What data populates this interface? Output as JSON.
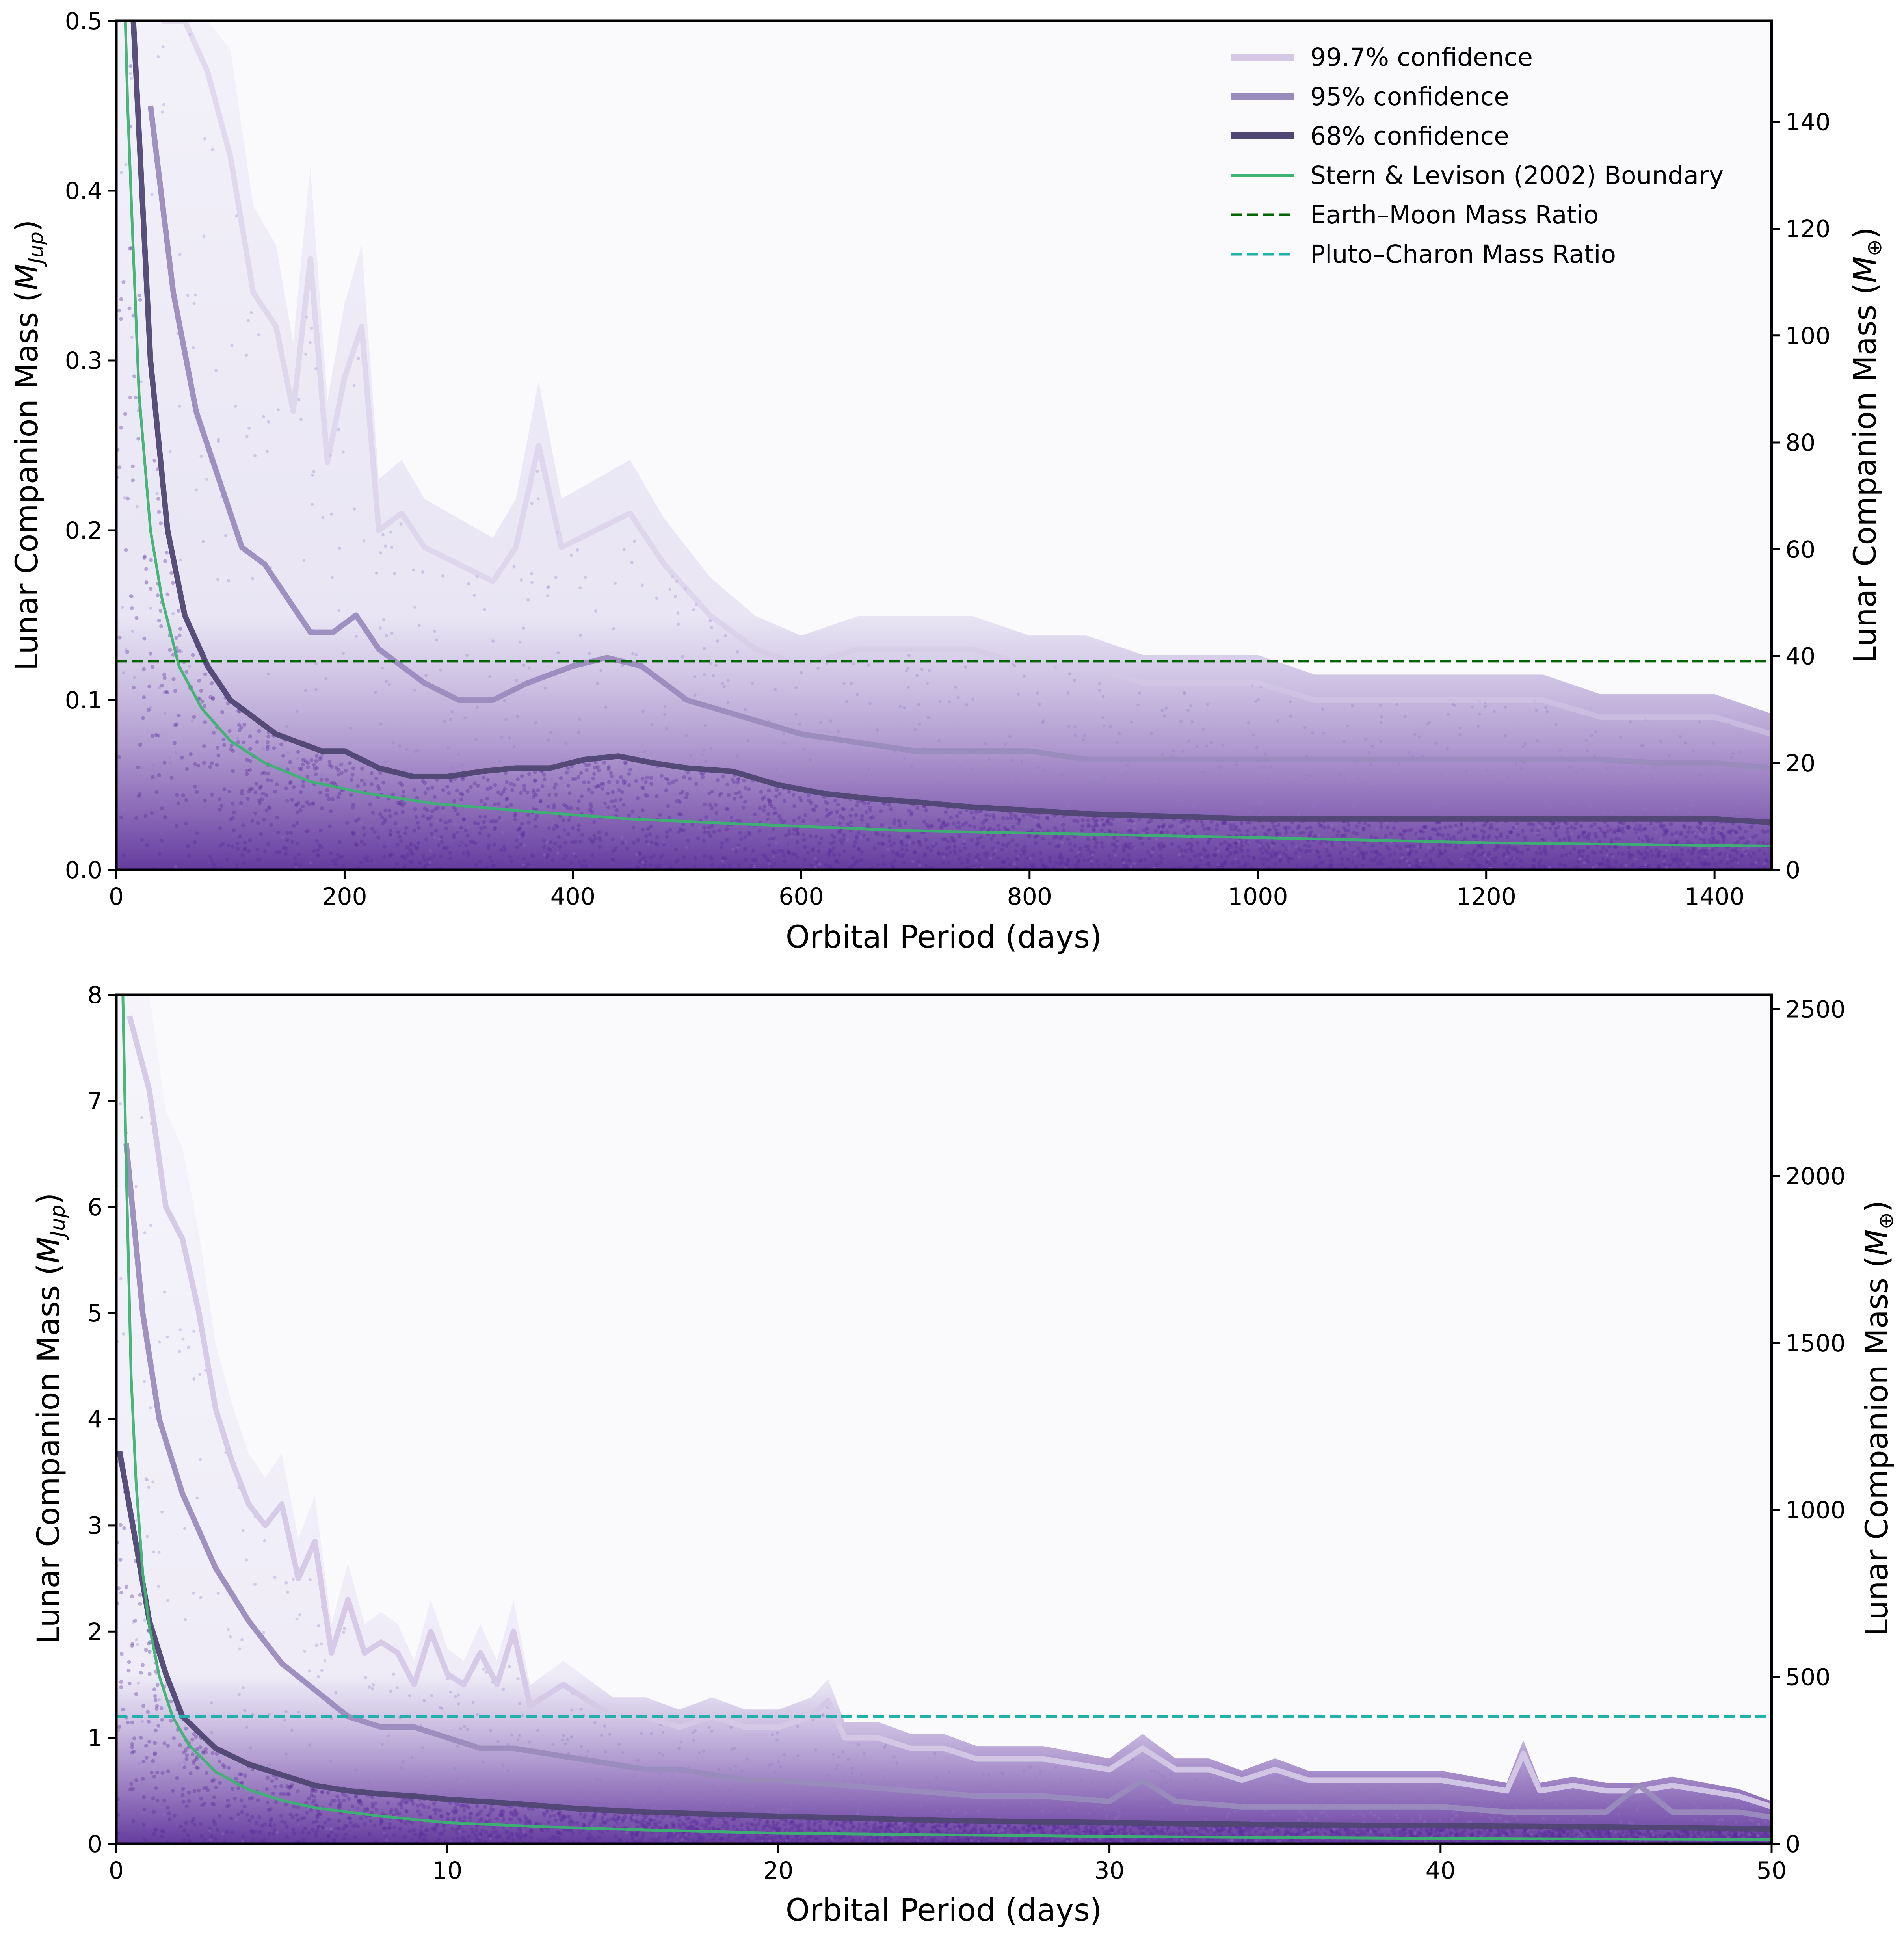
{
  "chart_data": [
    {
      "type": "scatter",
      "xlabel": "Orbital Period (days)",
      "ylabel": "Lunar Companion Mass (M_Jup)",
      "ylabel_parts": [
        "Lunar Companion Mass (",
        "M",
        "Jup",
        ")"
      ],
      "y2label_parts": [
        "Lunar Companion Mass (",
        "M",
        "⊕",
        ")"
      ],
      "xlim": [
        0,
        1450
      ],
      "ylim": [
        0,
        0.5
      ],
      "y2lim": [
        0,
        158.9
      ],
      "xticks": [
        0,
        200,
        400,
        600,
        800,
        1000,
        1200,
        1400
      ],
      "yticks": [
        0.0,
        0.1,
        0.2,
        0.3,
        0.4,
        0.5
      ],
      "ytick_labels": [
        "0.0",
        "0.1",
        "0.2",
        "0.3",
        "0.4",
        "0.5"
      ],
      "y2ticks": [
        0,
        20,
        40,
        60,
        80,
        100,
        120,
        140
      ],
      "grid": false,
      "legend_position": "top-right",
      "legend": [
        {
          "label": "99.7% confidence",
          "color": "#d4c8e6",
          "style": "solid-thick"
        },
        {
          "label": "95% confidence",
          "color": "#9a8bbd",
          "style": "solid-thick"
        },
        {
          "label": "68% confidence",
          "color": "#4f4673",
          "style": "solid-thick"
        },
        {
          "label": "Stern & Levison (2002) Boundary",
          "color": "#3cb371",
          "style": "solid"
        },
        {
          "label": "Earth–Moon Mass Ratio",
          "color": "#006400",
          "style": "dashed"
        },
        {
          "label": "Pluto–Charon Mass Ratio",
          "color": "#20b2aa",
          "style": "dashed"
        }
      ],
      "series": [
        {
          "name": "99.7% confidence",
          "color": "#d4c8e6",
          "x": [
            40,
            60,
            80,
            100,
            120,
            140,
            155,
            170,
            185,
            200,
            215,
            230,
            250,
            270,
            300,
            330,
            350,
            370,
            390,
            420,
            450,
            480,
            520,
            560,
            600,
            650,
            700,
            750,
            800,
            850,
            900,
            950,
            1000,
            1050,
            1100,
            1150,
            1200,
            1250,
            1300,
            1350,
            1400,
            1450
          ],
          "y": [
            0.5,
            0.5,
            0.47,
            0.42,
            0.34,
            0.32,
            0.27,
            0.36,
            0.24,
            0.29,
            0.32,
            0.2,
            0.21,
            0.19,
            0.18,
            0.17,
            0.19,
            0.25,
            0.19,
            0.2,
            0.21,
            0.18,
            0.15,
            0.13,
            0.12,
            0.13,
            0.13,
            0.13,
            0.12,
            0.12,
            0.11,
            0.11,
            0.11,
            0.1,
            0.1,
            0.1,
            0.1,
            0.1,
            0.09,
            0.09,
            0.09,
            0.08
          ]
        },
        {
          "name": "95% confidence",
          "color": "#9a8bbd",
          "x": [
            30,
            50,
            70,
            90,
            110,
            130,
            150,
            170,
            190,
            210,
            230,
            250,
            270,
            300,
            330,
            360,
            400,
            430,
            460,
            500,
            550,
            600,
            650,
            700,
            750,
            800,
            850,
            900,
            950,
            1000,
            1050,
            1100,
            1150,
            1200,
            1250,
            1300,
            1350,
            1400,
            1450
          ],
          "y": [
            0.45,
            0.34,
            0.27,
            0.23,
            0.19,
            0.18,
            0.16,
            0.14,
            0.14,
            0.15,
            0.13,
            0.12,
            0.11,
            0.1,
            0.1,
            0.11,
            0.12,
            0.125,
            0.12,
            0.1,
            0.09,
            0.08,
            0.075,
            0.07,
            0.07,
            0.07,
            0.065,
            0.065,
            0.065,
            0.065,
            0.065,
            0.065,
            0.065,
            0.065,
            0.065,
            0.065,
            0.063,
            0.063,
            0.06
          ]
        },
        {
          "name": "68% confidence",
          "color": "#4f4673",
          "x": [
            15,
            30,
            45,
            60,
            80,
            100,
            120,
            140,
            160,
            180,
            200,
            230,
            260,
            290,
            320,
            350,
            380,
            410,
            440,
            470,
            500,
            540,
            580,
            620,
            660,
            700,
            750,
            800,
            850,
            900,
            950,
            1000,
            1050,
            1100,
            1150,
            1200,
            1250,
            1300,
            1350,
            1400,
            1450
          ],
          "y": [
            0.5,
            0.3,
            0.2,
            0.15,
            0.12,
            0.1,
            0.09,
            0.08,
            0.075,
            0.07,
            0.07,
            0.06,
            0.055,
            0.055,
            0.058,
            0.06,
            0.06,
            0.065,
            0.067,
            0.063,
            0.06,
            0.058,
            0.05,
            0.045,
            0.042,
            0.04,
            0.037,
            0.035,
            0.033,
            0.032,
            0.031,
            0.03,
            0.03,
            0.03,
            0.03,
            0.03,
            0.03,
            0.03,
            0.03,
            0.03,
            0.028
          ]
        },
        {
          "name": "Stern & Levison (2002) Boundary",
          "color": "#3cb371",
          "x": [
            8,
            10,
            14,
            20,
            30,
            40,
            55,
            75,
            100,
            130,
            170,
            220,
            280,
            350,
            450,
            550,
            700,
            850,
            1000,
            1200,
            1450
          ],
          "y": [
            0.5,
            0.45,
            0.38,
            0.28,
            0.2,
            0.16,
            0.12,
            0.095,
            0.076,
            0.063,
            0.052,
            0.045,
            0.039,
            0.035,
            0.03,
            0.027,
            0.023,
            0.021,
            0.019,
            0.016,
            0.014
          ]
        },
        {
          "name": "Earth–Moon Mass Ratio",
          "color": "#006400",
          "y_const": 0.123
        }
      ]
    },
    {
      "type": "scatter",
      "xlabel": "Orbital Period (days)",
      "ylabel": "Lunar Companion Mass (M_Jup)",
      "ylabel_parts": [
        "Lunar Companion Mass (",
        "M",
        "Jup",
        ")"
      ],
      "y2label_parts": [
        "Lunar Companion Mass (",
        "M",
        "⊕",
        ")"
      ],
      "xlim": [
        0,
        50
      ],
      "ylim": [
        0,
        8
      ],
      "y2lim": [
        0,
        2543
      ],
      "xticks": [
        0,
        10,
        20,
        30,
        40,
        50
      ],
      "yticks": [
        0,
        1,
        2,
        3,
        4,
        5,
        6,
        7,
        8
      ],
      "ytick_labels": [
        "0",
        "1",
        "2",
        "3",
        "4",
        "5",
        "6",
        "7",
        "8"
      ],
      "y2ticks": [
        0,
        500,
        1000,
        1500,
        2000,
        2500
      ],
      "grid": false,
      "series": [
        {
          "name": "99.7% confidence",
          "color": "#d4c8e6",
          "x": [
            0.4,
            1,
            1.5,
            2,
            2.5,
            3,
            3.5,
            4,
            4.5,
            5,
            5.5,
            6,
            6.5,
            7,
            7.5,
            8,
            8.5,
            9,
            9.5,
            10,
            10.5,
            11,
            11.5,
            12,
            12.5,
            13,
            13.5,
            14,
            15,
            16,
            17,
            18,
            19,
            20,
            21,
            21.5,
            22,
            23,
            24,
            25,
            26,
            27,
            28,
            29,
            30,
            31,
            32,
            33,
            34,
            35,
            36,
            37,
            38,
            39,
            40,
            41,
            42,
            42.5,
            43,
            44,
            45,
            46,
            47,
            48,
            49,
            50
          ],
          "y": [
            7.8,
            7.1,
            6.0,
            5.7,
            5.0,
            4.1,
            3.6,
            3.2,
            3.0,
            3.2,
            2.5,
            2.85,
            1.8,
            2.3,
            1.8,
            1.9,
            1.8,
            1.5,
            2.0,
            1.6,
            1.5,
            1.8,
            1.5,
            2.0,
            1.3,
            1.4,
            1.5,
            1.4,
            1.2,
            1.2,
            1.1,
            1.2,
            1.1,
            1.1,
            1.2,
            1.35,
            1.0,
            1.0,
            0.9,
            0.9,
            0.8,
            0.8,
            0.8,
            0.75,
            0.7,
            0.9,
            0.7,
            0.7,
            0.6,
            0.7,
            0.6,
            0.6,
            0.6,
            0.6,
            0.6,
            0.55,
            0.5,
            0.85,
            0.5,
            0.55,
            0.5,
            0.5,
            0.55,
            0.5,
            0.45,
            0.35
          ]
        },
        {
          "name": "95% confidence",
          "color": "#9a8bbd",
          "x": [
            0.3,
            0.8,
            1.3,
            2,
            3,
            4,
            5,
            6,
            7,
            8,
            9,
            10,
            11,
            12,
            13,
            14,
            15,
            16,
            17,
            18,
            19,
            20,
            22,
            24,
            26,
            28,
            30,
            31,
            32,
            34,
            36,
            38,
            40,
            42,
            44,
            45,
            46,
            47,
            48,
            49,
            50
          ],
          "y": [
            6.6,
            5.0,
            4.0,
            3.3,
            2.6,
            2.1,
            1.7,
            1.45,
            1.2,
            1.1,
            1.1,
            1.0,
            0.9,
            0.9,
            0.85,
            0.8,
            0.75,
            0.7,
            0.7,
            0.65,
            0.6,
            0.6,
            0.55,
            0.5,
            0.45,
            0.45,
            0.4,
            0.6,
            0.4,
            0.35,
            0.35,
            0.35,
            0.35,
            0.3,
            0.3,
            0.3,
            0.55,
            0.3,
            0.3,
            0.3,
            0.25
          ]
        },
        {
          "name": "68% confidence",
          "color": "#4f4673",
          "x": [
            0.1,
            0.5,
            1,
            1.5,
            2,
            3,
            4,
            5,
            6,
            7,
            8,
            9,
            10,
            12,
            14,
            16,
            18,
            20,
            25,
            30,
            35,
            40,
            45,
            50
          ],
          "y": [
            3.7,
            3.0,
            2.1,
            1.6,
            1.2,
            0.9,
            0.75,
            0.65,
            0.55,
            0.5,
            0.47,
            0.45,
            0.42,
            0.38,
            0.33,
            0.3,
            0.28,
            0.26,
            0.22,
            0.2,
            0.18,
            0.17,
            0.16,
            0.14
          ]
        },
        {
          "name": "Stern & Levison (2002) Boundary",
          "color": "#3cb371",
          "x": [
            0.2,
            0.3,
            0.45,
            0.6,
            0.8,
            1,
            1.3,
            1.7,
            2.2,
            3,
            4,
            5,
            6,
            8,
            10,
            13,
            16,
            20,
            25,
            30,
            35,
            40,
            45,
            50
          ],
          "y": [
            8.0,
            6.4,
            4.4,
            3.4,
            2.55,
            2.05,
            1.58,
            1.2,
            0.93,
            0.68,
            0.51,
            0.41,
            0.34,
            0.26,
            0.2,
            0.16,
            0.13,
            0.1,
            0.085,
            0.07,
            0.06,
            0.052,
            0.046,
            0.041
          ]
        },
        {
          "name": "Pluto–Charon Mass Ratio",
          "color": "#20b2aa",
          "y_const": 1.2
        }
      ]
    }
  ],
  "colors": {
    "scatter_dense": "#5a2a9a",
    "scatter_light": "#8d7bc4",
    "plot_background": "#fafafd"
  }
}
